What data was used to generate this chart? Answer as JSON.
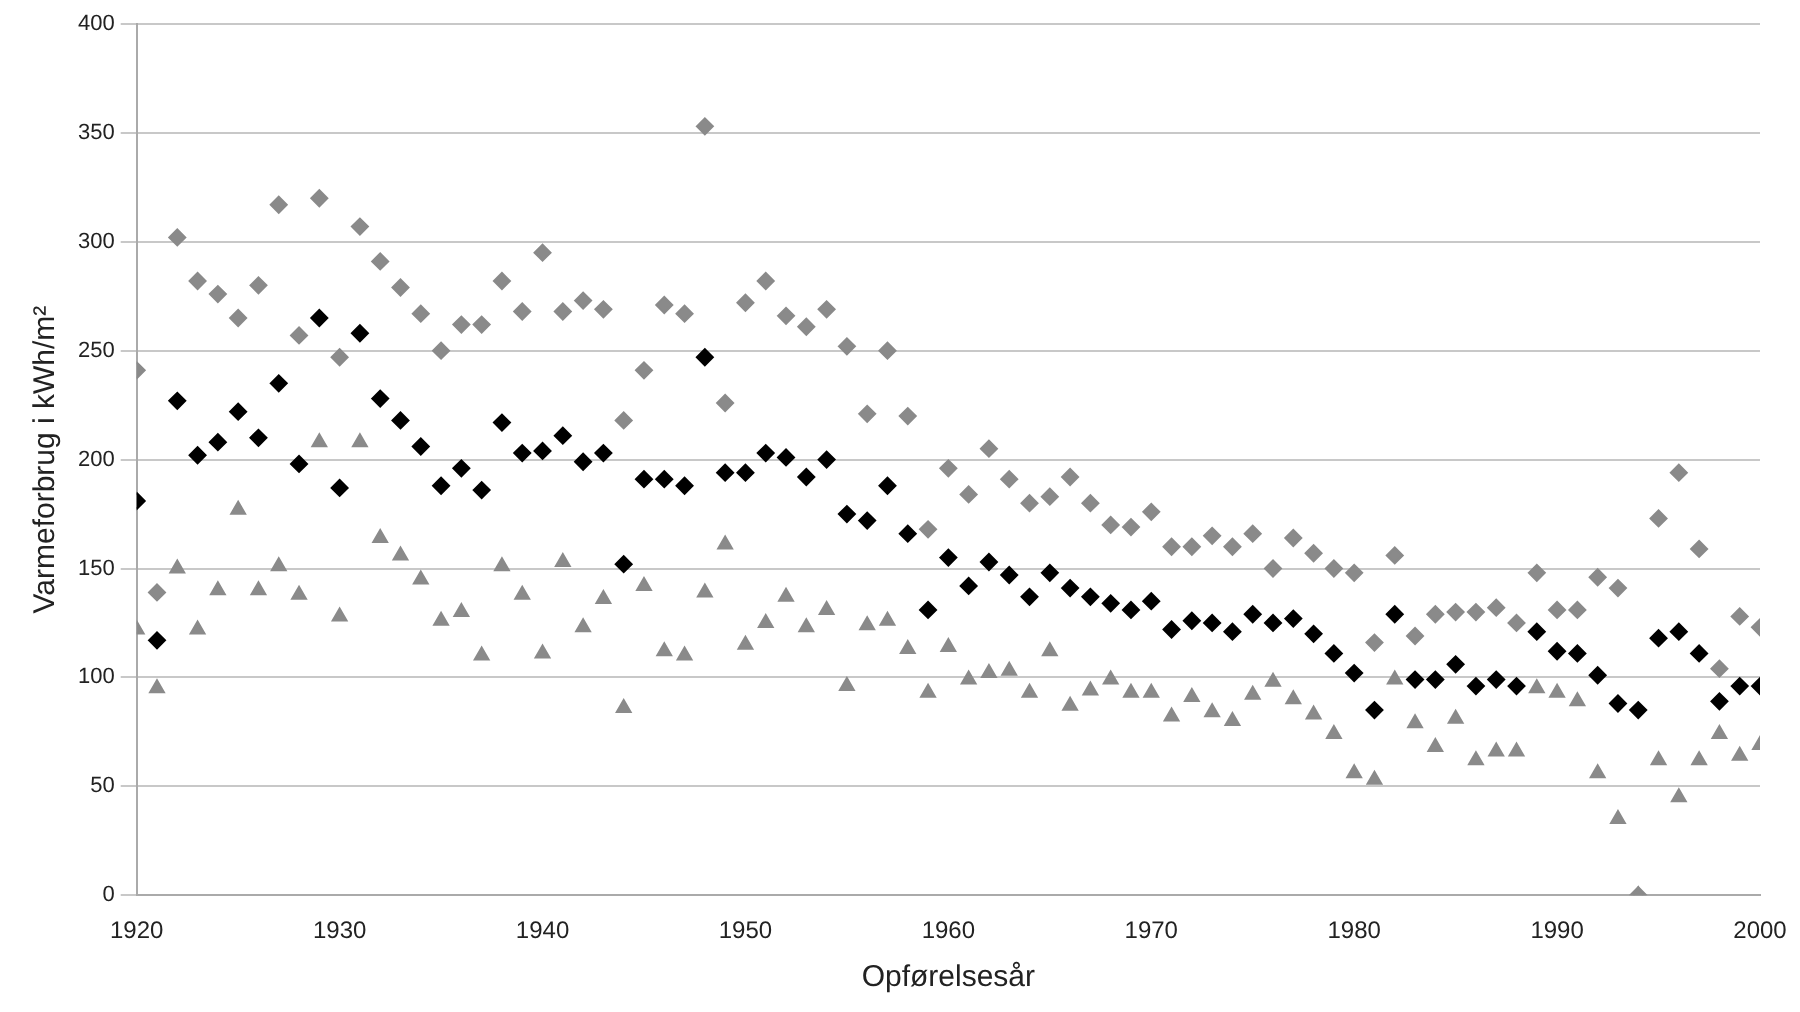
{
  "chart_data": {
    "type": "scatter",
    "xlabel": "Opførelsesår",
    "ylabel": "Varmeforbrug i kWh/m²",
    "x": [
      1920,
      1921,
      1922,
      1923,
      1924,
      1925,
      1926,
      1927,
      1928,
      1929,
      1930,
      1931,
      1932,
      1933,
      1934,
      1935,
      1936,
      1937,
      1938,
      1939,
      1940,
      1941,
      1942,
      1943,
      1944,
      1945,
      1946,
      1947,
      1948,
      1949,
      1950,
      1951,
      1952,
      1953,
      1954,
      1955,
      1956,
      1957,
      1958,
      1959,
      1960,
      1961,
      1962,
      1963,
      1964,
      1965,
      1966,
      1967,
      1968,
      1969,
      1970,
      1971,
      1972,
      1973,
      1974,
      1975,
      1976,
      1977,
      1978,
      1979,
      1980,
      1981,
      1982,
      1983,
      1984,
      1985,
      1986,
      1987,
      1988,
      1989,
      1990,
      1991,
      1992,
      1993,
      1994,
      1995,
      1996,
      1997,
      1998,
      1999,
      2000
    ],
    "series": [
      {
        "color": "#8a8a8a",
        "marker": "diamond",
        "values": [
          241,
          139,
          302,
          282,
          276,
          265,
          280,
          317,
          257,
          320,
          247,
          307,
          291,
          279,
          267,
          250,
          262,
          262,
          282,
          268,
          295,
          268,
          273,
          269,
          218,
          241,
          271,
          267,
          353,
          226,
          272,
          282,
          266,
          261,
          269,
          252,
          221,
          250,
          220,
          168,
          196,
          184,
          205,
          191,
          180,
          183,
          192,
          180,
          170,
          169,
          176,
          160,
          160,
          165,
          160,
          166,
          150,
          164,
          157,
          150,
          148,
          116,
          156,
          119,
          129,
          130,
          130,
          132,
          125,
          148,
          131,
          131,
          146,
          141,
          0,
          173,
          194,
          159,
          104,
          128,
          123
        ]
      },
      {
        "color": "#000000",
        "marker": "diamond",
        "values": [
          181,
          117,
          227,
          202,
          208,
          222,
          210,
          235,
          198,
          265,
          187,
          258,
          228,
          218,
          206,
          188,
          196,
          186,
          217,
          203,
          204,
          211,
          199,
          203,
          152,
          191,
          191,
          188,
          247,
          194,
          194,
          203,
          201,
          192,
          200,
          175,
          172,
          188,
          166,
          131,
          155,
          142,
          153,
          147,
          137,
          148,
          141,
          137,
          134,
          131,
          135,
          122,
          126,
          125,
          121,
          129,
          125,
          127,
          120,
          111,
          102,
          85,
          129,
          99,
          99,
          106,
          96,
          99,
          96,
          121,
          112,
          111,
          101,
          88,
          85,
          118,
          121,
          111,
          89,
          96,
          96
        ]
      },
      {
        "color": "#8a8a8a",
        "marker": "triangle",
        "values": [
          122,
          95,
          150,
          122,
          140,
          177,
          140,
          151,
          138,
          208,
          128,
          208,
          164,
          156,
          145,
          126,
          130,
          110,
          151,
          138,
          111,
          153,
          123,
          136,
          86,
          142,
          112,
          110,
          139,
          161,
          115,
          125,
          137,
          123,
          131,
          96,
          124,
          126,
          113,
          93,
          114,
          99,
          102,
          103,
          93,
          112,
          87,
          94,
          99,
          93,
          93,
          82,
          91,
          84,
          80,
          92,
          98,
          90,
          83,
          74,
          56,
          53,
          99,
          79,
          68,
          81,
          62,
          66,
          66,
          95,
          93,
          89,
          56,
          35,
          0,
          62,
          45,
          62,
          74,
          64,
          69
        ]
      }
    ],
    "xlim": [
      1920,
      2000
    ],
    "xticks": [
      1920,
      1930,
      1940,
      1950,
      1960,
      1970,
      1980,
      1990,
      2000
    ],
    "ylim": [
      0,
      400
    ],
    "yticks": [
      0,
      50,
      100,
      150,
      200,
      250,
      300,
      350,
      400
    ],
    "grid": "y",
    "legend": false
  }
}
